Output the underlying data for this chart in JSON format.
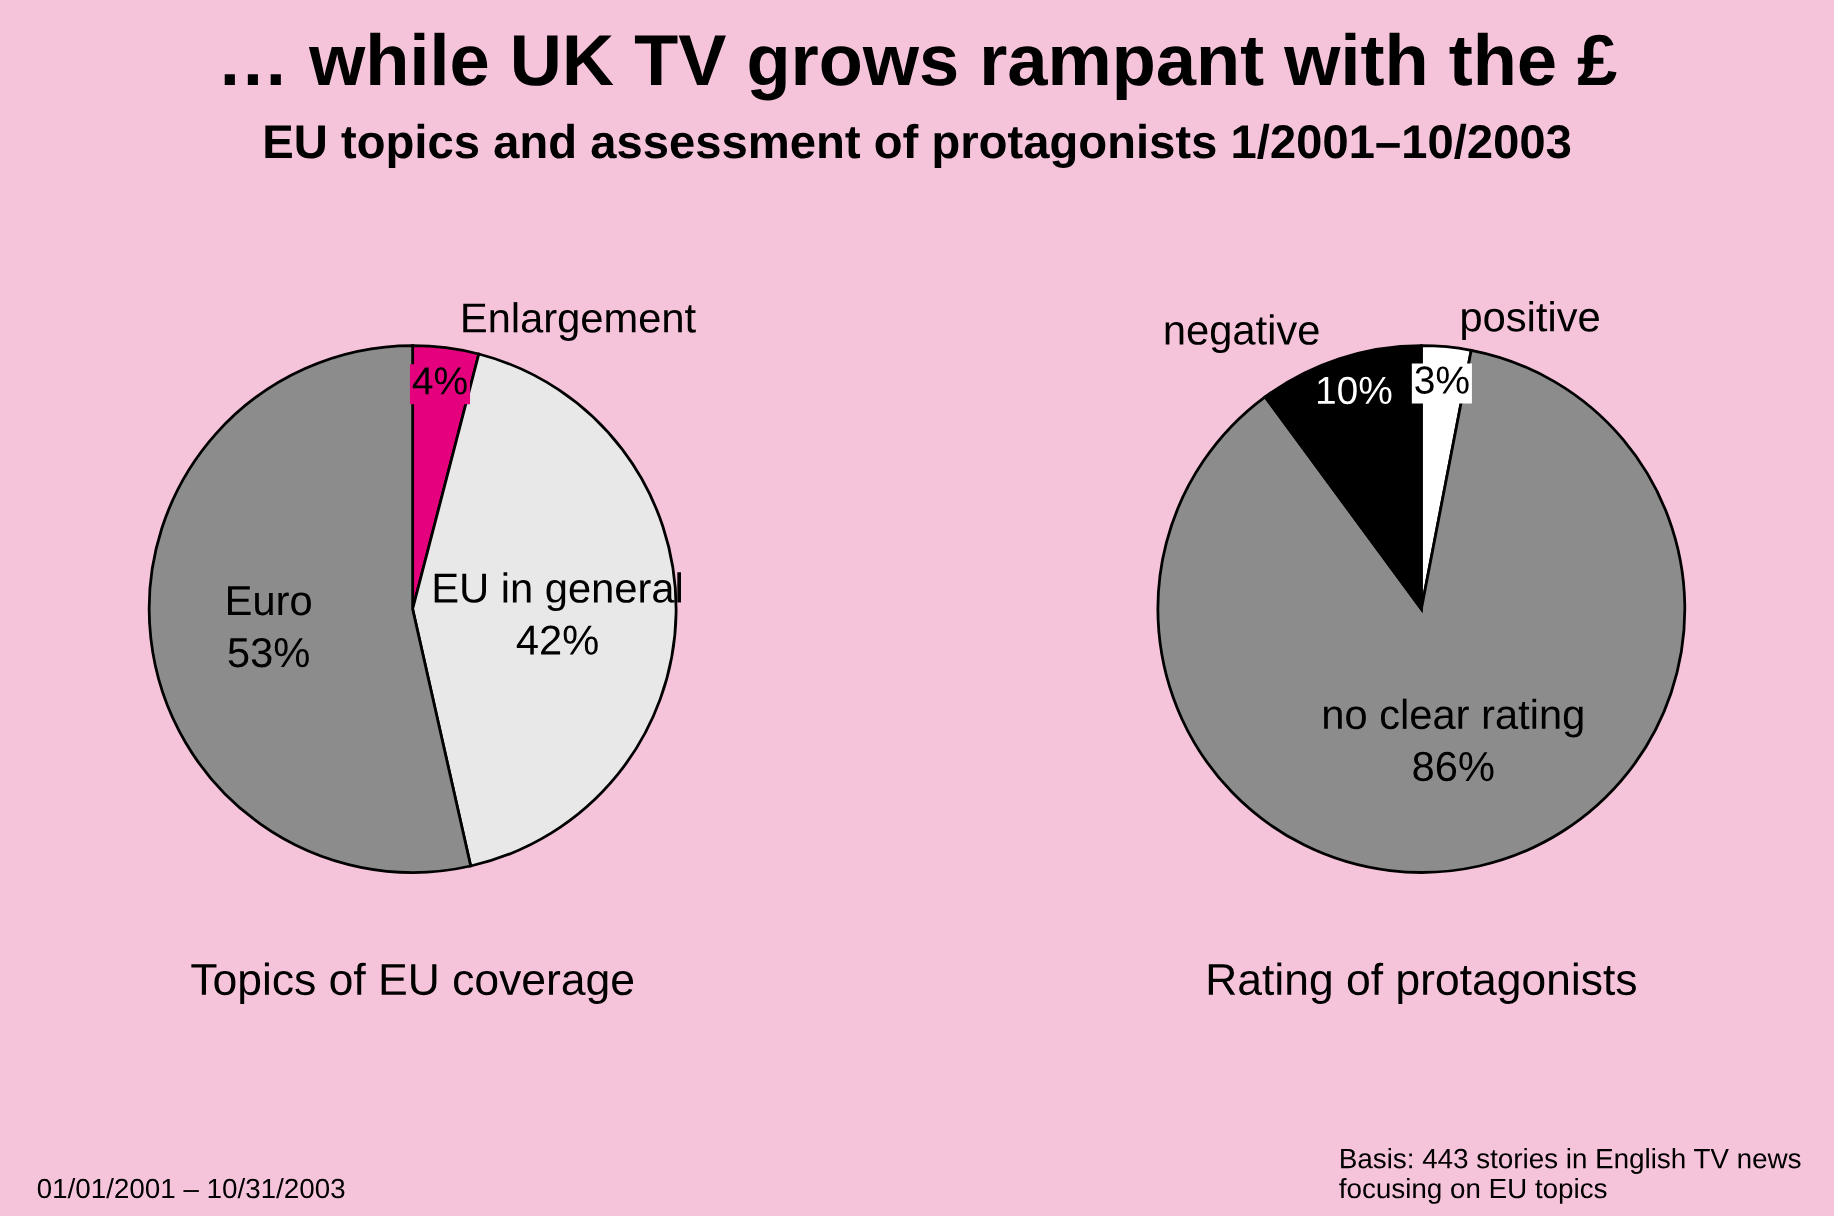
{
  "chart_data": [
    {
      "type": "pie",
      "title": "… while UK TV grows rampant with the £",
      "subtitle": "EU topics and assessment of protagonists 1/2001–10/2003",
      "xlabel": "Topics of EU coverage",
      "categories": [
        "Enlargement",
        "EU in general",
        "Euro"
      ],
      "values": [
        4,
        42,
        53
      ],
      "value_labels": [
        "4%",
        "42%",
        "53%"
      ],
      "colors": [
        "#e5007d",
        "#e8e8e8",
        "#8c8c8c"
      ],
      "annotations": [
        "01/01/2001 – 10/31/2003"
      ]
    },
    {
      "type": "pie",
      "xlabel": "Rating of protagonists",
      "categories": [
        "positive",
        "no clear rating",
        "negative"
      ],
      "values": [
        3,
        86,
        10
      ],
      "value_labels": [
        "3%",
        "86%",
        "10%"
      ],
      "colors": [
        "#ffffff",
        "#8c8c8c",
        "#000000"
      ],
      "annotations": [
        "Basis: 443 stories in English TV news\nfocusing on EU topics"
      ]
    }
  ]
}
